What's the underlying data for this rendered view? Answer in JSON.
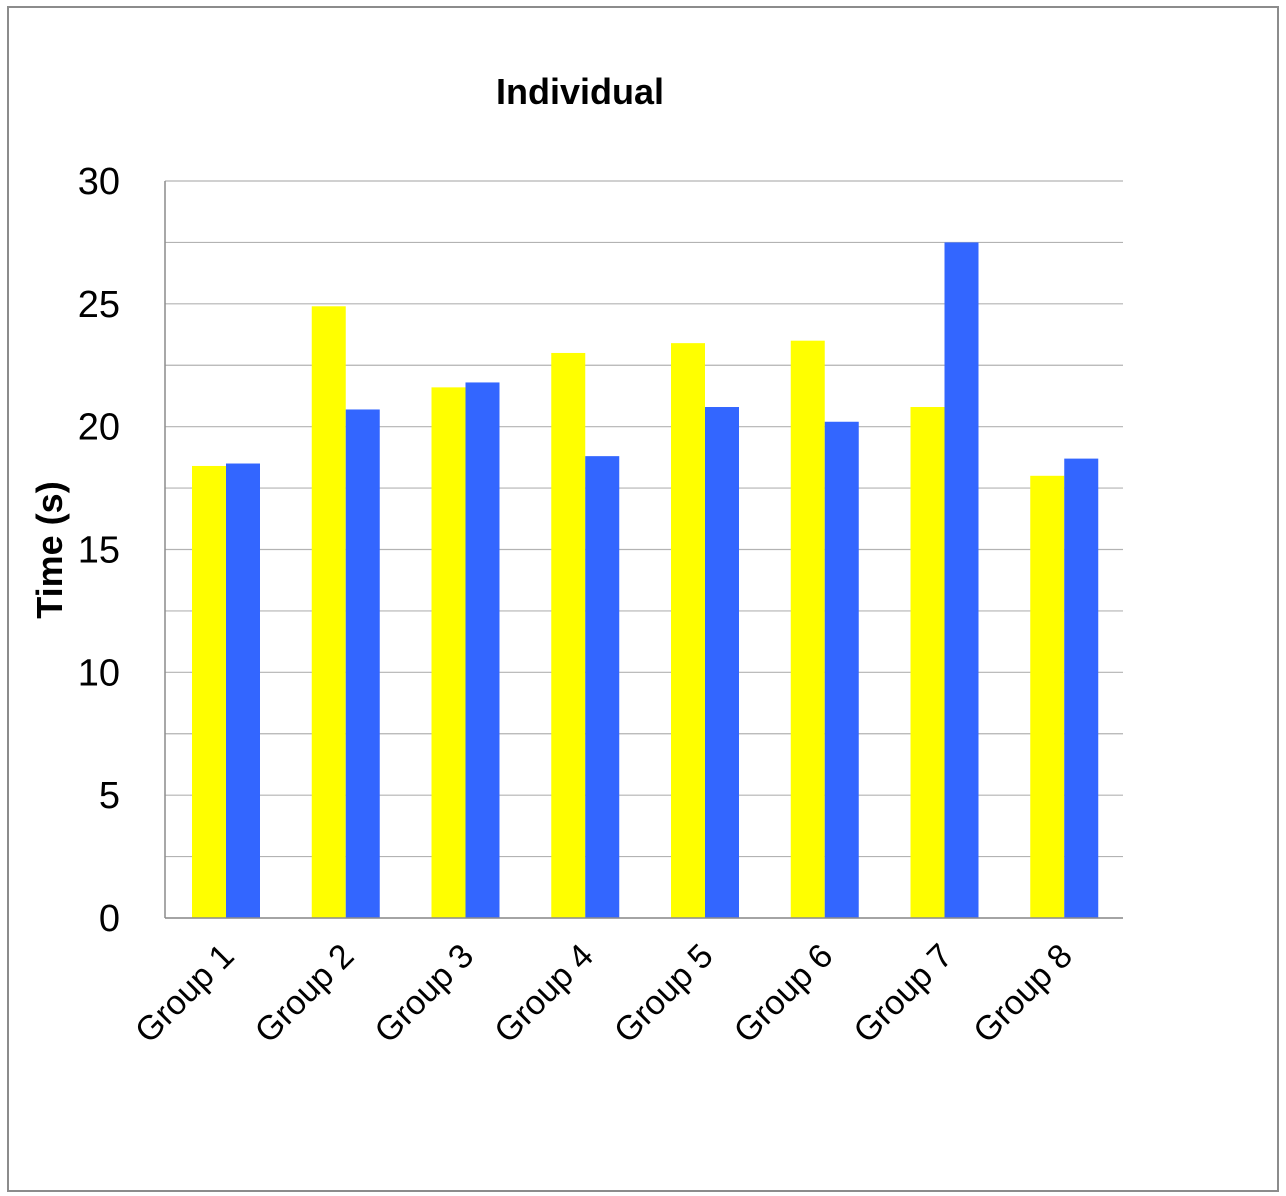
{
  "chart_data": {
    "type": "bar",
    "title": "Individual",
    "xlabel": "",
    "ylabel": "Time (s)",
    "ylim": [
      0,
      30
    ],
    "yticks": [
      "0",
      "5",
      "10",
      "15",
      "20",
      "25",
      "30"
    ],
    "grid": true,
    "legend": "none",
    "categories": [
      "Group 1",
      "Group 2",
      "Group 3",
      "Group 4",
      "Group 5",
      "Group 6",
      "Group 7",
      "Group 8"
    ],
    "series": [
      {
        "color": "#ffff00",
        "values": [
          18.4,
          24.9,
          21.6,
          23.0,
          23.4,
          23.5,
          20.8,
          18.0
        ]
      },
      {
        "color": "#3366ff",
        "values": [
          18.5,
          20.7,
          21.8,
          18.8,
          20.8,
          20.2,
          27.5,
          18.7
        ]
      }
    ]
  }
}
